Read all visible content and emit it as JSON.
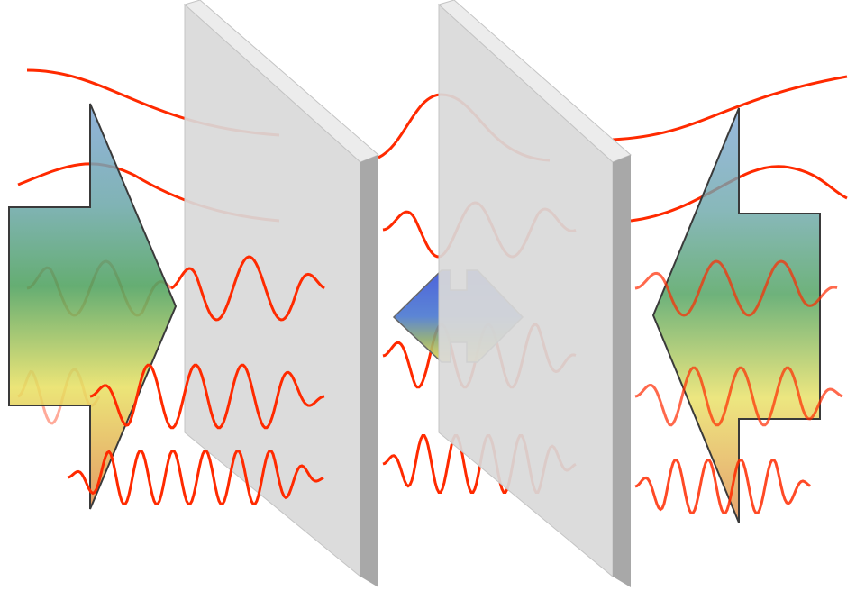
{
  "colors": {
    "wave": "#ff2a00",
    "panel_face": "#d9d9d9",
    "panel_edge": "#a8a8a8",
    "panel_top": "#ececec",
    "gradient": [
      "#7fa6d6",
      "#4a9f5a",
      "#e8e060",
      "#e08a4a"
    ],
    "center_gradient": [
      "#3a52d8",
      "#4a78d0",
      "#e8d850"
    ]
  }
}
